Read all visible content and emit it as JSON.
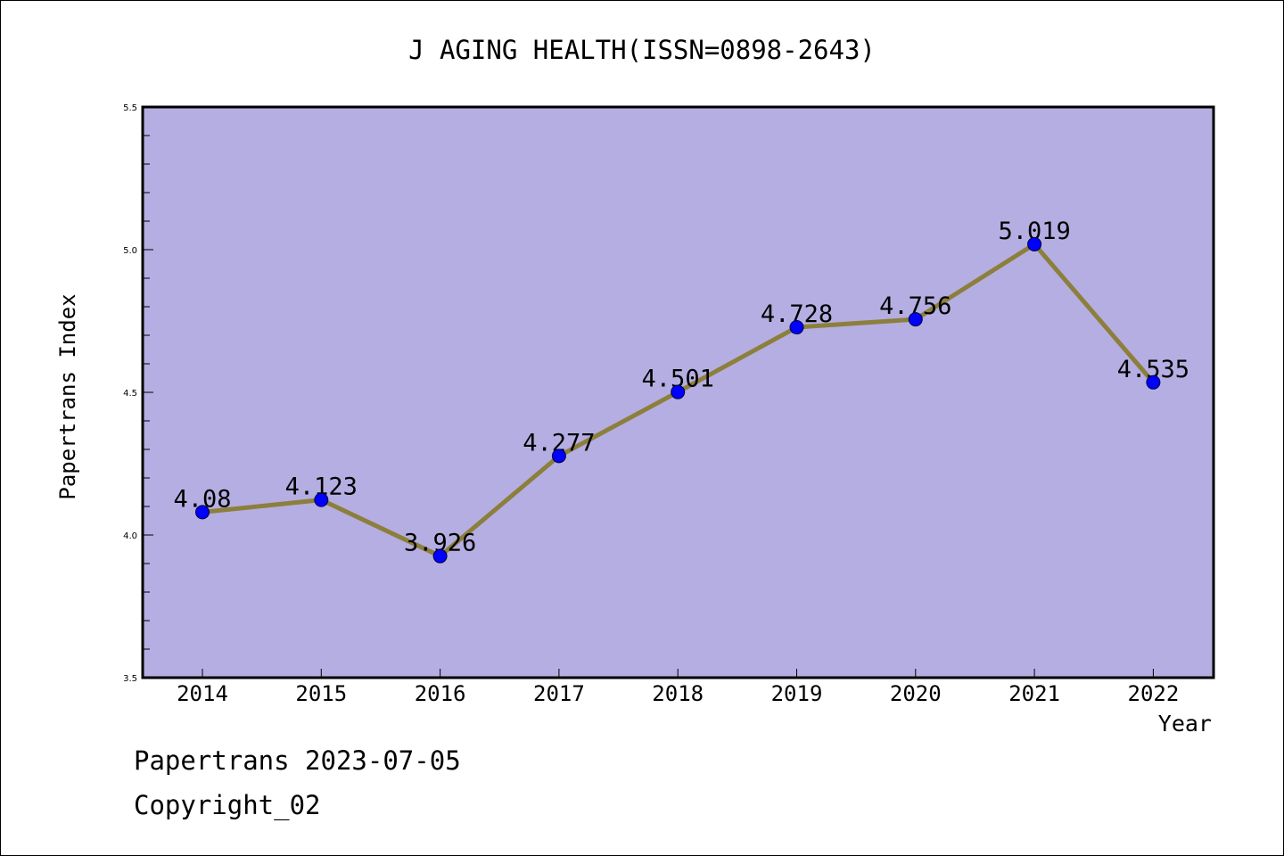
{
  "chart_data": {
    "type": "line",
    "title": "J AGING HEALTH(ISSN=0898-2643)",
    "xlabel": "Year",
    "ylabel": "Papertrans Index",
    "categories": [
      "2014",
      "2015",
      "2016",
      "2017",
      "2018",
      "2019",
      "2020",
      "2021",
      "2022"
    ],
    "values": [
      4.08,
      4.123,
      3.926,
      4.277,
      4.501,
      4.728,
      4.756,
      5.019,
      4.535
    ],
    "data_labels": [
      "4.08",
      "4.123",
      "3.926",
      "4.277",
      "4.501",
      "4.728",
      "4.756",
      "5.019",
      "4.535"
    ],
    "ylim": [
      3.5,
      5.5
    ],
    "yticks": [
      "3.5",
      "4.0",
      "4.5",
      "5.0",
      "5.5"
    ],
    "grid": false,
    "colors": {
      "plot_background": "#b5aee2",
      "line": "#8c7f3c",
      "marker": "#0000ff"
    }
  },
  "footer": {
    "date_line": "Papertrans 2023-07-05",
    "copyright": "Copyright_02"
  }
}
